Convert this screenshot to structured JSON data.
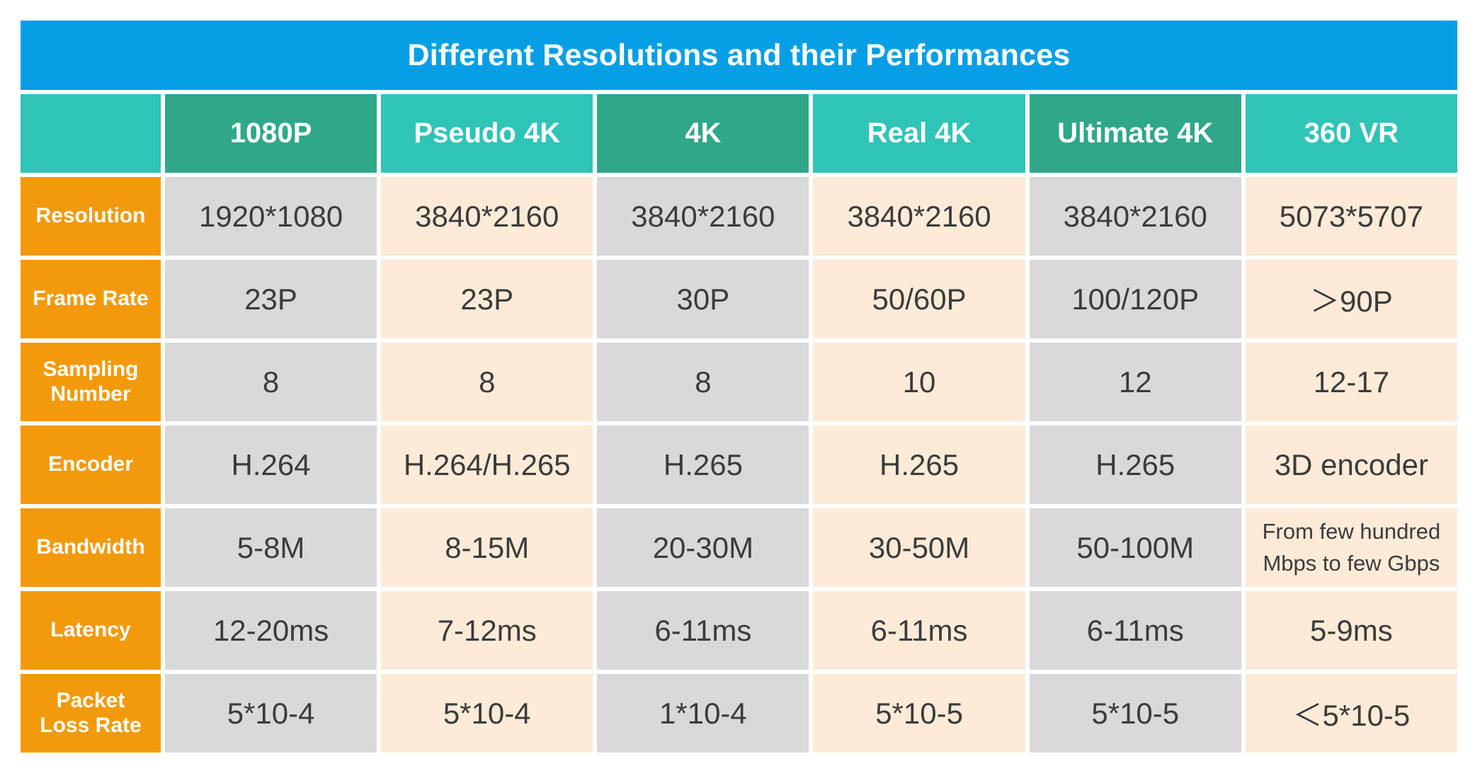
{
  "title": "Different Resolutions and their Performances",
  "columns": [
    "1080P",
    "Pseudo 4K",
    "4K",
    "Real 4K",
    "Ultimate 4K",
    "360 VR"
  ],
  "rows": [
    {
      "label": "Resolution",
      "values": [
        "1920*1080",
        "3840*2160",
        "3840*2160",
        "3840*2160",
        "3840*2160",
        "5073*5707"
      ]
    },
    {
      "label": "Frame Rate",
      "values": [
        "23P",
        "23P",
        "30P",
        "50/60P",
        "100/120P",
        "＞90P"
      ]
    },
    {
      "label": "Sampling\nNumber",
      "values": [
        "8",
        "8",
        "8",
        "10",
        "12",
        "12-17"
      ]
    },
    {
      "label": "Encoder",
      "values": [
        "H.264",
        "H.264/H.265",
        "H.265",
        "H.265",
        "H.265",
        "3D encoder"
      ]
    },
    {
      "label": "Bandwidth",
      "values": [
        "5-8M",
        "8-15M",
        "20-30M",
        "30-50M",
        "50-100M",
        "From few hundred\nMbps to few Gbps"
      ]
    },
    {
      "label": "Latency",
      "values": [
        "12-20ms",
        "7-12ms",
        "6-11ms",
        "6-11ms",
        "6-11ms",
        "5-9ms"
      ]
    },
    {
      "label": "Packet\nLoss Rate",
      "values": [
        "5*10-4",
        "5*10-4",
        "1*10-4",
        "5*10-5",
        "5*10-5",
        "＜5*10-5"
      ]
    }
  ],
  "colors": {
    "title_bg": "#069fe5",
    "header_dark": "#2ea889",
    "header_light": "#2ec4b6",
    "row_header": "#f29a0c",
    "cell_grey": "#d9d9d9",
    "cell_cream": "#fdebd8"
  }
}
